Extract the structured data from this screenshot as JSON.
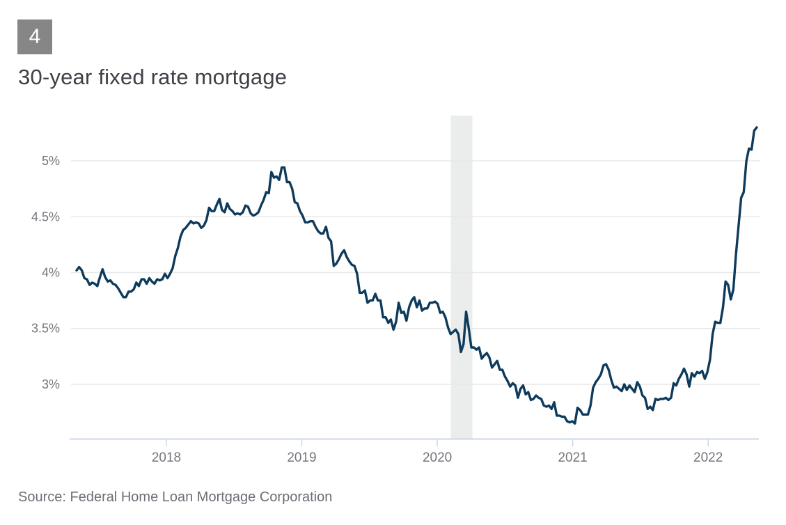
{
  "figure": {
    "number": "4",
    "title": "30-year fixed rate mortgage"
  },
  "source": {
    "text": "Source: Federal Home Loan Mortgage Corporation"
  },
  "colors": {
    "line": "#0e3b5c",
    "gridline": "#e8e8e8",
    "axis": "#ccd6ec",
    "band": "#ebecec",
    "badge_bg": "#868686",
    "badge_text": "#ffffff",
    "title_text": "#3f4147",
    "tick_text": "#74767c",
    "source_text": "#6b6e75"
  },
  "chart_data": {
    "type": "line",
    "title": "30-year fixed rate mortgage",
    "xlabel": "",
    "ylabel": "",
    "unit": "%",
    "frequency": "weekly",
    "start_date": "2017-05-04",
    "end_date": "2022-05-12",
    "grid": "horizontal",
    "legend": "none",
    "x_domain": [
      2017.337,
      2022.359
    ],
    "y_domain": [
      2.514,
      5.405
    ],
    "y_ticks": [
      {
        "value": 3,
        "label": "3%"
      },
      {
        "value": 3.5,
        "label": "3.5%"
      },
      {
        "value": 4,
        "label": "4%"
      },
      {
        "value": 4.5,
        "label": "4.5%"
      },
      {
        "value": 5,
        "label": "5%"
      }
    ],
    "x_ticks": [
      {
        "value": 2018,
        "label": "2018"
      },
      {
        "value": 2019,
        "label": "2019"
      },
      {
        "value": 2020,
        "label": "2020"
      },
      {
        "value": 2021,
        "label": "2021"
      },
      {
        "value": 2022,
        "label": "2022"
      }
    ],
    "recession_band": {
      "start": 2020.1,
      "end": 2020.26
    },
    "series": [
      {
        "name": "30-year fixed rate mortgage (%)",
        "values": [
          4.02,
          4.05,
          4.02,
          3.95,
          3.94,
          3.89,
          3.91,
          3.9,
          3.88,
          3.96,
          4.03,
          3.96,
          3.92,
          3.93,
          3.9,
          3.89,
          3.86,
          3.82,
          3.78,
          3.78,
          3.83,
          3.83,
          3.85,
          3.91,
          3.88,
          3.94,
          3.94,
          3.9,
          3.95,
          3.92,
          3.9,
          3.94,
          3.93,
          3.94,
          3.99,
          3.95,
          3.99,
          4.04,
          4.15,
          4.22,
          4.32,
          4.38,
          4.4,
          4.43,
          4.46,
          4.44,
          4.45,
          4.44,
          4.4,
          4.42,
          4.47,
          4.58,
          4.55,
          4.55,
          4.61,
          4.66,
          4.56,
          4.54,
          4.62,
          4.57,
          4.55,
          4.52,
          4.53,
          4.52,
          4.54,
          4.6,
          4.59,
          4.53,
          4.51,
          4.52,
          4.54,
          4.6,
          4.65,
          4.72,
          4.71,
          4.9,
          4.85,
          4.86,
          4.83,
          4.94,
          4.94,
          4.81,
          4.81,
          4.75,
          4.63,
          4.62,
          4.55,
          4.51,
          4.45,
          4.45,
          4.46,
          4.46,
          4.41,
          4.37,
          4.35,
          4.35,
          4.41,
          4.31,
          4.28,
          4.06,
          4.08,
          4.12,
          4.17,
          4.2,
          4.14,
          4.1,
          4.07,
          4.06,
          3.99,
          3.82,
          3.82,
          3.84,
          3.73,
          3.75,
          3.75,
          3.81,
          3.75,
          3.75,
          3.6,
          3.6,
          3.55,
          3.58,
          3.49,
          3.56,
          3.73,
          3.64,
          3.65,
          3.57,
          3.69,
          3.75,
          3.78,
          3.69,
          3.75,
          3.66,
          3.68,
          3.68,
          3.73,
          3.73,
          3.74,
          3.72,
          3.64,
          3.65,
          3.6,
          3.51,
          3.45,
          3.47,
          3.49,
          3.45,
          3.29,
          3.36,
          3.65,
          3.5,
          3.33,
          3.33,
          3.31,
          3.33,
          3.23,
          3.26,
          3.28,
          3.24,
          3.15,
          3.18,
          3.21,
          3.13,
          3.13,
          3.07,
          3.03,
          2.98,
          3.01,
          2.99,
          2.88,
          2.96,
          2.99,
          2.91,
          2.93,
          2.86,
          2.87,
          2.9,
          2.88,
          2.87,
          2.81,
          2.8,
          2.81,
          2.78,
          2.84,
          2.72,
          2.72,
          2.71,
          2.71,
          2.67,
          2.66,
          2.67,
          2.65,
          2.79,
          2.77,
          2.73,
          2.73,
          2.73,
          2.81,
          2.97,
          3.02,
          3.05,
          3.09,
          3.17,
          3.18,
          3.13,
          3.04,
          2.97,
          2.98,
          2.96,
          2.94,
          3.0,
          2.95,
          2.99,
          2.96,
          2.93,
          3.02,
          2.98,
          2.9,
          2.88,
          2.78,
          2.8,
          2.77,
          2.87,
          2.86,
          2.87,
          2.87,
          2.88,
          2.86,
          2.88,
          3.01,
          2.99,
          3.05,
          3.09,
          3.14,
          3.09,
          2.98,
          3.1,
          3.07,
          3.11,
          3.1,
          3.12,
          3.05,
          3.11,
          3.22,
          3.45,
          3.56,
          3.55,
          3.55,
          3.69,
          3.92,
          3.89,
          3.76,
          3.85,
          4.16,
          4.42,
          4.67,
          4.72,
          5.0,
          5.11,
          5.1,
          5.27,
          5.3
        ]
      }
    ]
  }
}
